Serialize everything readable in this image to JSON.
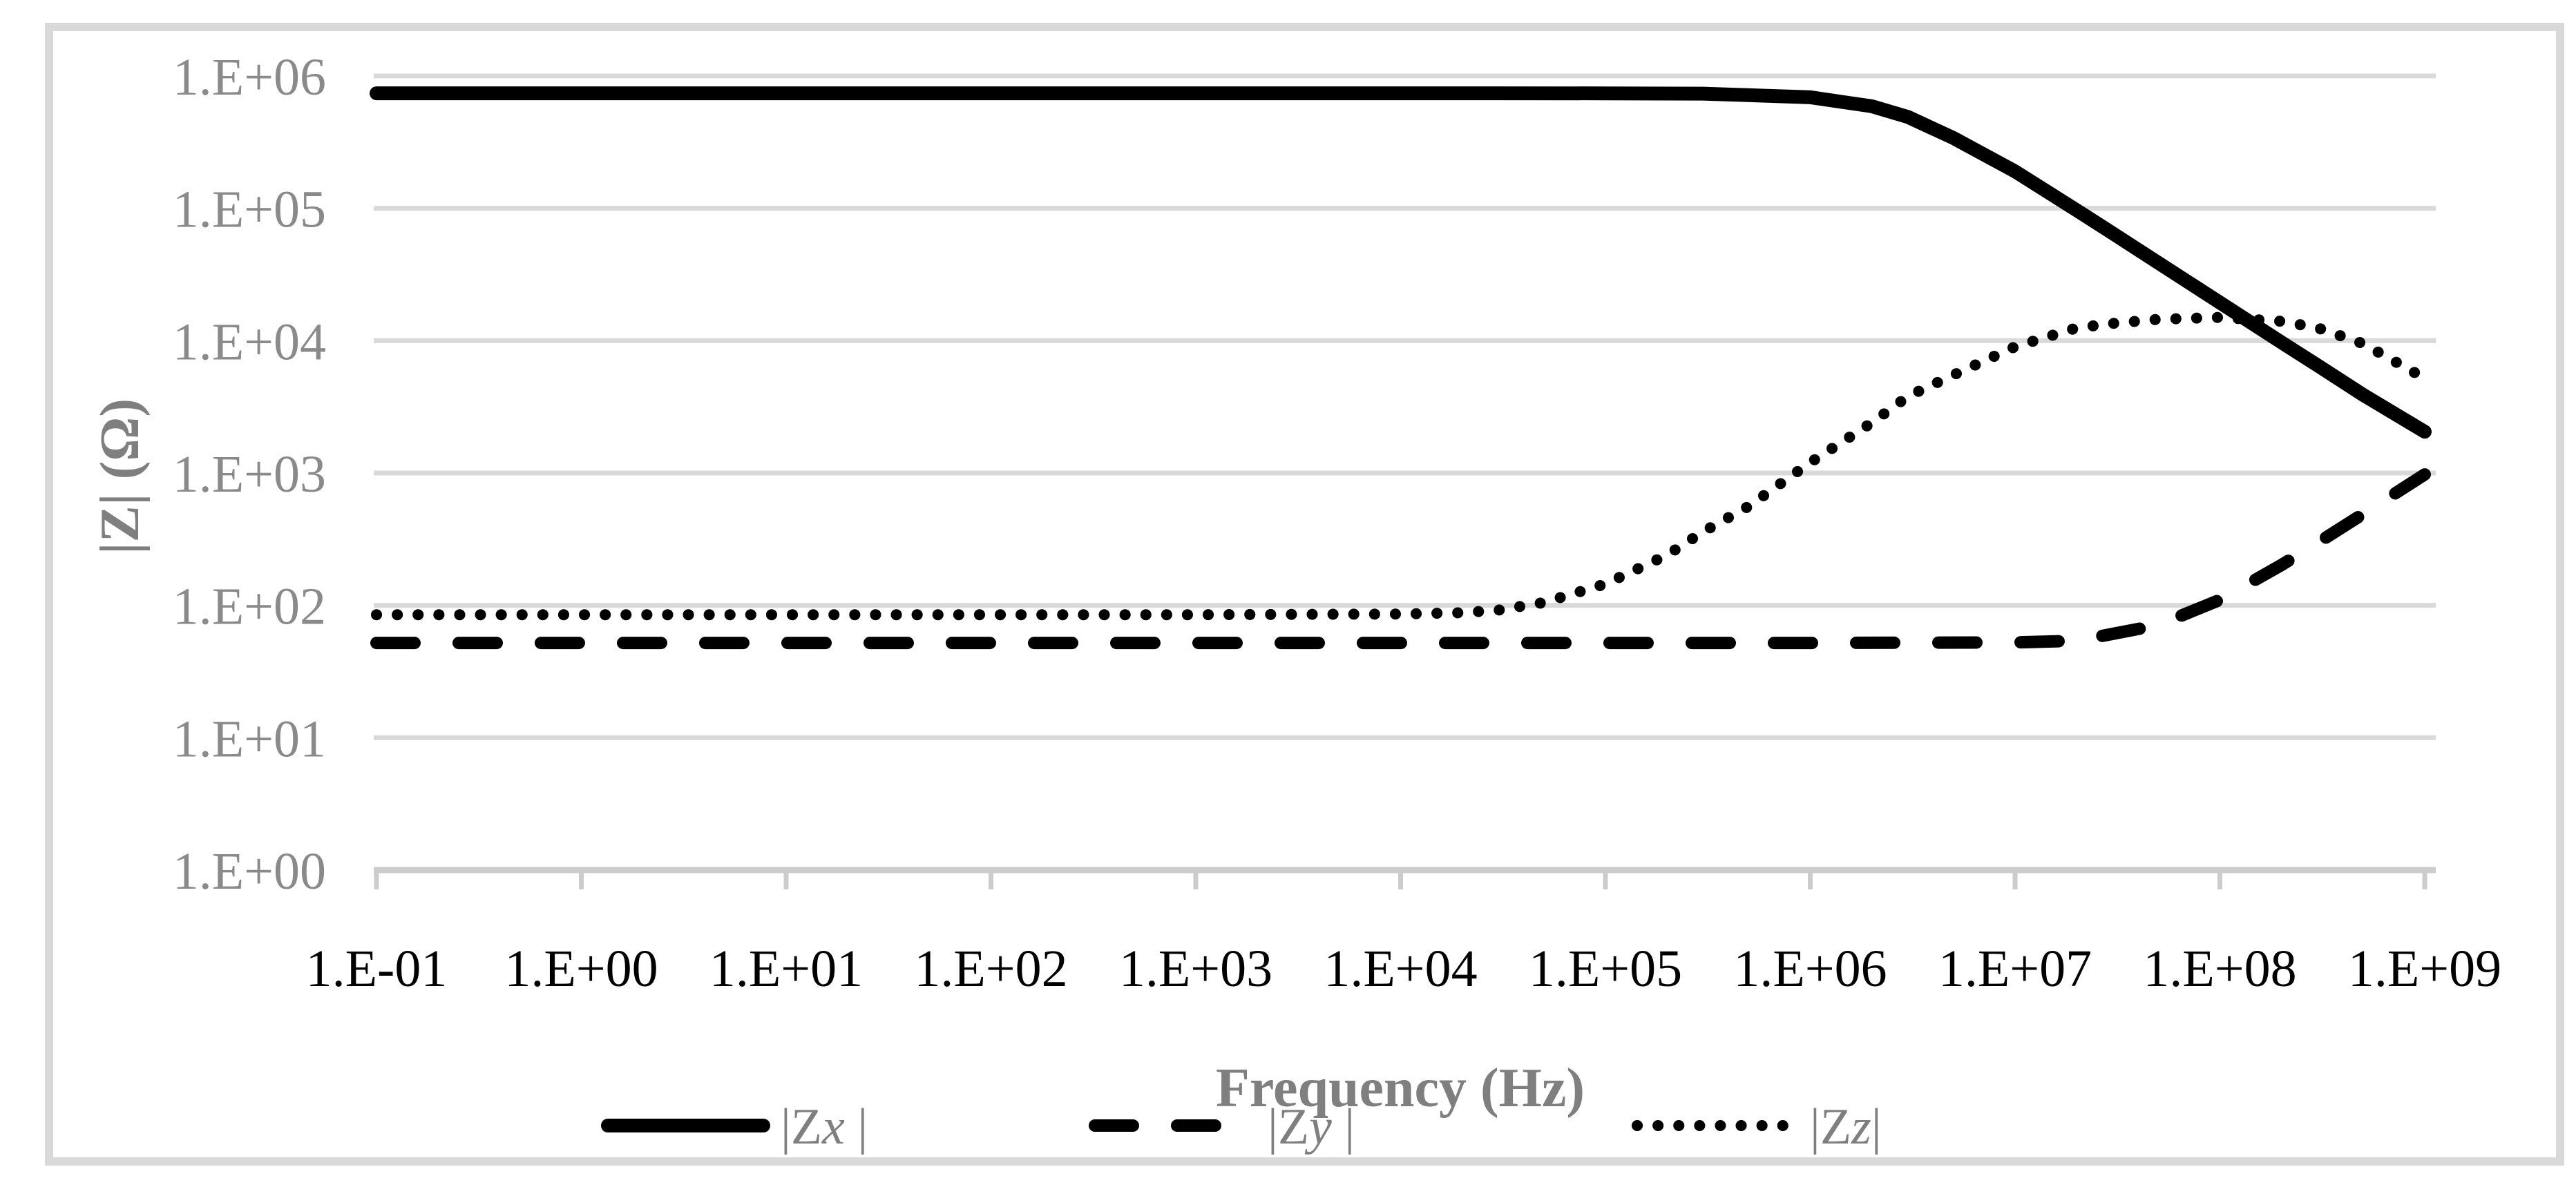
{
  "colors": {
    "background": "#ffffff",
    "frame": "#d9d9d9",
    "gridline": "#d9d9d9",
    "axis_line": "#cccccc",
    "tick_mark": "#cccccc",
    "y_tick_text": "#8a8a8a",
    "x_tick_text": "#000000",
    "axis_title_text": "#7f7f7f",
    "legend_text": "#7f7f7f",
    "series_stroke": "#000000"
  },
  "chart_data": {
    "type": "line",
    "title": "",
    "xlabel": "Frequency (Hz)",
    "ylabel": "|Z| (Ω)",
    "x_scale": "log",
    "y_scale": "log",
    "xlim": [
      0.1,
      1000000000
    ],
    "ylim": [
      1,
      1000000
    ],
    "x_log_min": -1,
    "x_log_max": 9,
    "y_log_min": 0,
    "y_log_max": 6,
    "grid": "horizontal-only",
    "legend_position": "bottom",
    "x_tick_labels": [
      "1.E-01",
      "1.E+00",
      "1.E+01",
      "1.E+02",
      "1.E+03",
      "1.E+04",
      "1.E+05",
      "1.E+06",
      "1.E+07",
      "1.E+08",
      "1.E+09"
    ],
    "y_tick_labels": [
      "1.E+06",
      "1.E+05",
      "1.E+04",
      "1.E+03",
      "1.E+02",
      "1.E+01",
      "1.E+00"
    ],
    "series": [
      {
        "name": "|Zx |",
        "name_pre": "|Z",
        "name_var": "x",
        "name_post": " |",
        "style": "solid",
        "points": [
          [
            0.1,
            740000
          ],
          [
            1,
            740000
          ],
          [
            10,
            740000
          ],
          [
            100,
            740000
          ],
          [
            1000,
            740000
          ],
          [
            10000,
            740000
          ],
          [
            100000,
            739000
          ],
          [
            300000,
            735000
          ],
          [
            1000000,
            690000
          ],
          [
            2000000,
            590000
          ],
          [
            3000000,
            490000
          ],
          [
            5000000,
            340000
          ],
          [
            10000000,
            190000
          ],
          [
            20000000,
            96500
          ],
          [
            30000000,
            64600
          ],
          [
            50000000,
            38800
          ],
          [
            100000000,
            19400
          ],
          [
            200000000,
            9700
          ],
          [
            300000000,
            6500
          ],
          [
            500000000,
            3900
          ],
          [
            1000000000,
            2050
          ]
        ]
      },
      {
        "name": "|Zy |",
        "name_pre": "|Z",
        "name_var": "y",
        "name_post": " |",
        "style": "dashed",
        "points": [
          [
            0.1,
            52
          ],
          [
            1,
            52
          ],
          [
            10,
            52
          ],
          [
            100,
            52
          ],
          [
            1000,
            52
          ],
          [
            10000,
            52
          ],
          [
            100000,
            52
          ],
          [
            1000000,
            52
          ],
          [
            10000000,
            52.5
          ],
          [
            20000000,
            54
          ],
          [
            50000000,
            71
          ],
          [
            100000000,
            110
          ],
          [
            200000000,
            202
          ],
          [
            300000000,
            297
          ],
          [
            500000000,
            490
          ],
          [
            1000000000,
            975
          ]
        ]
      },
      {
        "name": "|Zz|",
        "name_pre": "|Z",
        "name_var": "z",
        "name_post": "|",
        "style": "dotted",
        "points": [
          [
            0.1,
            85
          ],
          [
            1,
            85
          ],
          [
            10,
            85
          ],
          [
            100,
            85
          ],
          [
            1000,
            85
          ],
          [
            10000,
            86
          ],
          [
            20000,
            88
          ],
          [
            30000,
            92
          ],
          [
            50000,
            105
          ],
          [
            100000,
            145
          ],
          [
            200000,
            240
          ],
          [
            300000,
            360
          ],
          [
            500000,
            560
          ],
          [
            1000000,
            1200
          ],
          [
            2000000,
            2400
          ],
          [
            3000000,
            3800
          ],
          [
            5000000,
            5500
          ],
          [
            10000000,
            9000
          ],
          [
            20000000,
            12500
          ],
          [
            30000000,
            13500
          ],
          [
            50000000,
            14500
          ],
          [
            100000000,
            15000
          ],
          [
            200000000,
            14000
          ],
          [
            300000000,
            12500
          ],
          [
            500000000,
            9500
          ],
          [
            1000000000,
            5200
          ]
        ]
      }
    ]
  }
}
